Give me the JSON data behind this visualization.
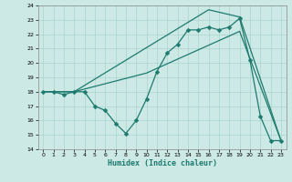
{
  "background_color": "#cce9e5",
  "grid_color": "#aad4cf",
  "line_color": "#1e7a6e",
  "xlabel": "Humidex (Indice chaleur)",
  "xlim": [
    -0.5,
    23.5
  ],
  "ylim": [
    14,
    24
  ],
  "yticks": [
    14,
    15,
    16,
    17,
    18,
    19,
    20,
    21,
    22,
    23,
    24
  ],
  "xticks": [
    0,
    1,
    2,
    3,
    4,
    5,
    6,
    7,
    8,
    9,
    10,
    11,
    12,
    13,
    14,
    15,
    16,
    17,
    18,
    19,
    20,
    21,
    22,
    23
  ],
  "line1_x": [
    0,
    1,
    2,
    3,
    4,
    5,
    6,
    7,
    8,
    9,
    10,
    11,
    12,
    13,
    14,
    15,
    16,
    17,
    18,
    19,
    20,
    21,
    22,
    23
  ],
  "line1_y": [
    18,
    18,
    17.8,
    18,
    18,
    17.0,
    16.7,
    15.8,
    15.1,
    16.0,
    17.5,
    19.4,
    20.7,
    21.3,
    22.3,
    22.3,
    22.5,
    22.3,
    22.5,
    23.1,
    20.2,
    16.3,
    14.6,
    14.6
  ],
  "line2_x": [
    0,
    3,
    10,
    19,
    23
  ],
  "line2_y": [
    18,
    18,
    19.3,
    22.2,
    14.6
  ],
  "line3_x": [
    0,
    3,
    16,
    19,
    23
  ],
  "line3_y": [
    18,
    18,
    23.7,
    23.2,
    14.6
  ],
  "marker": "D",
  "markersize": 2.5,
  "linewidth": 0.9
}
